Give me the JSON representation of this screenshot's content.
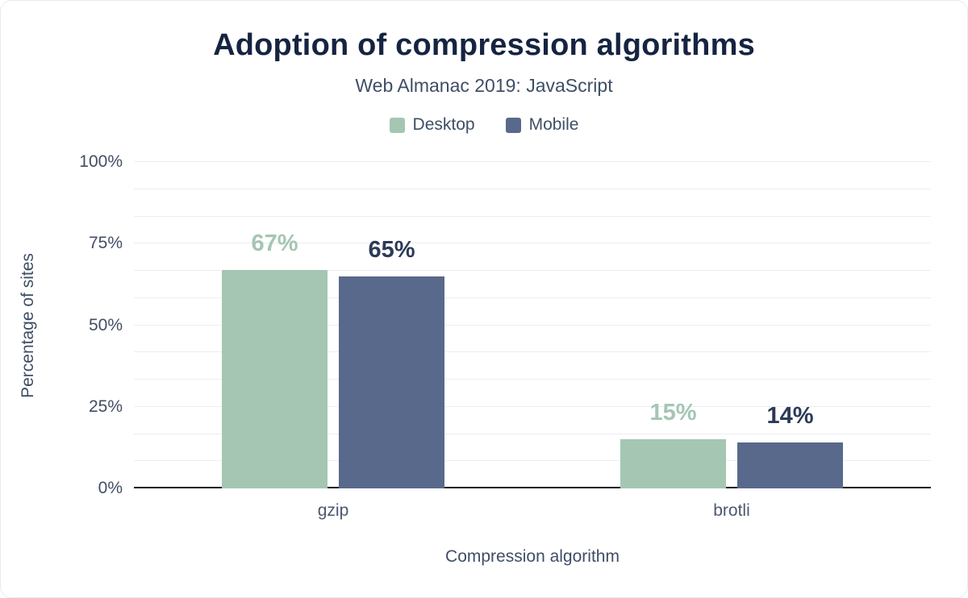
{
  "title": "Adoption of compression algorithms",
  "subtitle": "Web Almanac 2019: JavaScript",
  "chart_data": {
    "type": "bar",
    "title": "Adoption of compression algorithms",
    "subtitle": "Web Almanac 2019: JavaScript",
    "categories": [
      "gzip",
      "brotli"
    ],
    "series": [
      {
        "name": "Desktop",
        "values": [
          67,
          15
        ],
        "color": "#a4c6b3",
        "label_color": "#a4c6b3"
      },
      {
        "name": "Mobile",
        "values": [
          65,
          14
        ],
        "color": "#59698b",
        "label_color": "#2c3a57"
      }
    ],
    "xlabel": "Compression algorithm",
    "ylabel": "Percentage of sites",
    "ylim": [
      0,
      100
    ],
    "yticks": [
      0,
      25,
      50,
      75,
      100
    ],
    "ytick_labels": [
      "0%",
      "25%",
      "50%",
      "75%",
      "100%"
    ],
    "grid": true,
    "minor_grid_divisions": 12,
    "legend_position": "top",
    "data_labels": [
      "67%",
      "65%",
      "15%",
      "14%"
    ]
  },
  "colors": {
    "title": "#152441",
    "subtitle": "#3f4e66",
    "axis_line": "#16181d",
    "gridline": "#ededf2",
    "tick_text": "#434e63"
  }
}
